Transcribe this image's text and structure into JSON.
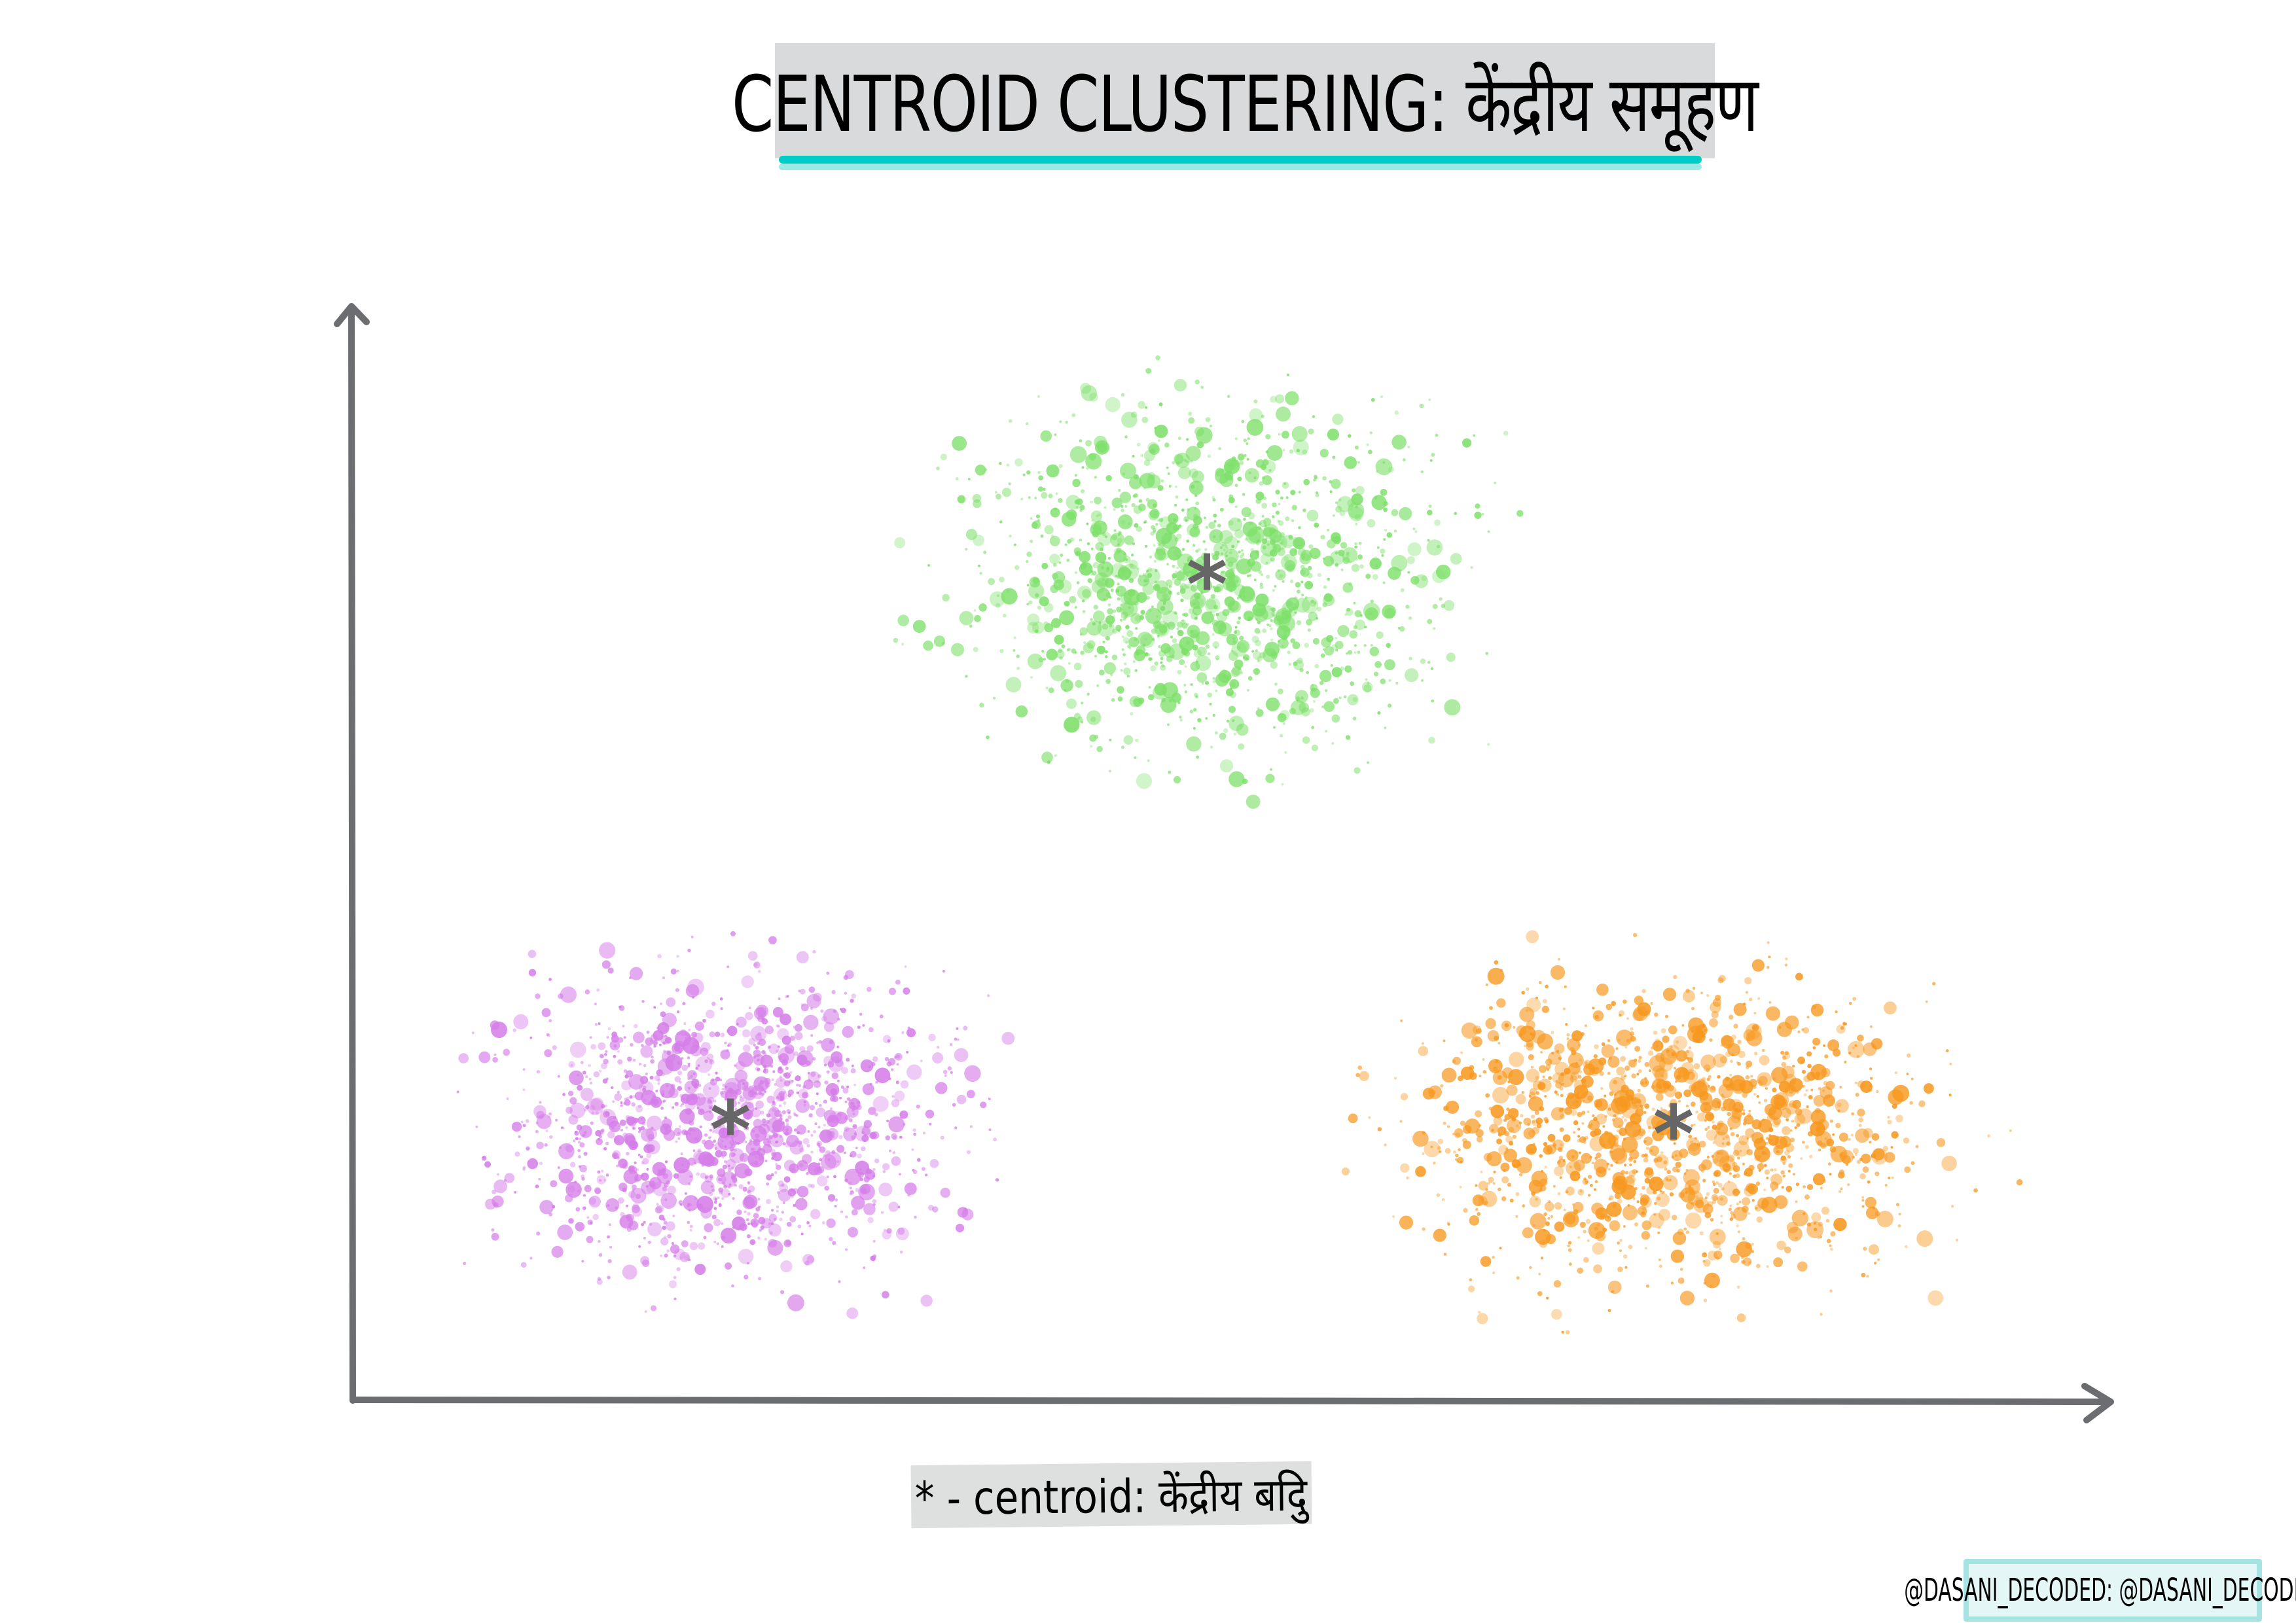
{
  "title": "CENTROID CLUSTERING: केंद्रीय समूहण",
  "legend": "* - centroid: केंद्रीय बदिु",
  "credit": "@DASANI_DECODED: @DASANI_DECODED",
  "colors": {
    "axis": "#6b6d70",
    "title_underline": "#00cdc6",
    "centroid": "#666666"
  },
  "clusters": [
    {
      "name": "green",
      "color": "#7ee06a",
      "centroid_marker": "*"
    },
    {
      "name": "purple",
      "color": "#d57de8",
      "centroid_marker": "*"
    },
    {
      "name": "orange",
      "color": "#f7981f",
      "centroid_marker": "*"
    }
  ]
}
